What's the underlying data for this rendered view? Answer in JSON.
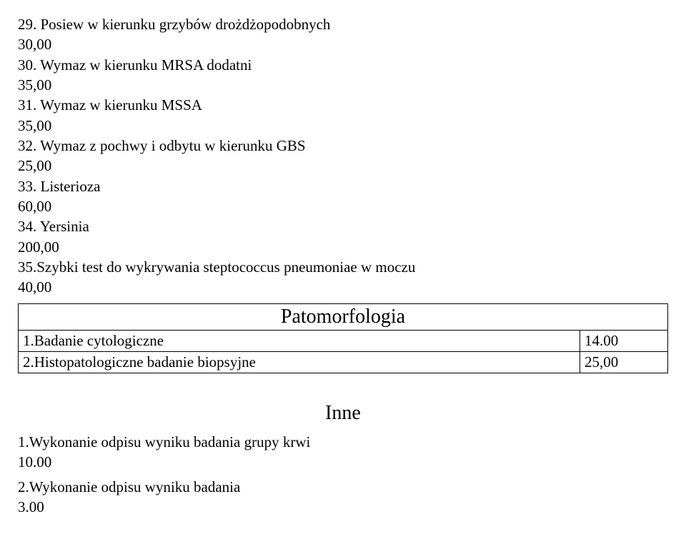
{
  "list": {
    "items": [
      {
        "num": "29.",
        "label": "Posiew w kierunku grzybów drożdżopodobnych",
        "price": "30,00"
      },
      {
        "num": "30.",
        "label": "Wymaz w kierunku MRSA dodatni",
        "price": "35,00"
      },
      {
        "num": "31.",
        "label": "Wymaz w kierunku MSSA",
        "price": "35,00"
      },
      {
        "num": "32.",
        "label": "Wymaz z pochwy i odbytu w kierunku GBS",
        "price": "25,00"
      },
      {
        "num": "33.",
        "label": "Listerioza",
        "price": "60,00"
      },
      {
        "num": "34.",
        "label": "Yersinia",
        "price": "200,00"
      },
      {
        "num": "35.",
        "label": "Szybki test do wykrywania steptococcus pneumoniae w moczu",
        "price": "40,00",
        "no_space_after_num": true
      }
    ]
  },
  "patomorfologia": {
    "header": "Patomorfologia",
    "rows": [
      {
        "label": "1.Badanie cytologiczne",
        "price": "14.00"
      },
      {
        "label": "2.Histopatologiczne badanie biopsyjne",
        "price": "25,00"
      }
    ]
  },
  "inne": {
    "header": "Inne",
    "items": [
      {
        "label": "1.Wykonanie odpisu wyniku badania grupy krwi",
        "price": "10.00"
      },
      {
        "label": "2.Wykonanie odpisu wyniku badania",
        "price": "3.00"
      }
    ]
  }
}
